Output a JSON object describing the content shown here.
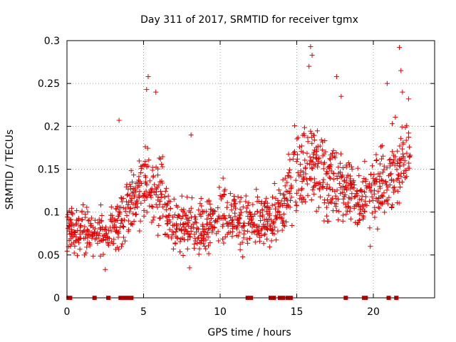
{
  "chart_data": {
    "type": "scatter",
    "title": "Day 311 of 2017, SRMTID for receiver tgmx",
    "xlabel": "GPS time / hours",
    "ylabel": "SRMTID / TECUs",
    "xlim": [
      0,
      24
    ],
    "ylim": [
      0,
      0.3
    ],
    "xticks": [
      0,
      5,
      10,
      15,
      20
    ],
    "yticks": [
      0,
      0.05,
      0.1,
      0.15,
      0.2,
      0.25,
      0.3
    ],
    "xtick_labels": [
      "0",
      "5",
      "10",
      "15",
      "20"
    ],
    "ytick_labels": [
      "0",
      "0.05",
      "0.1",
      "0.15",
      "0.2",
      "0.25",
      "0.3"
    ],
    "grid": true,
    "marker": "+",
    "color": "#e00000",
    "series": [
      {
        "name": "SRMTID",
        "trend": [
          {
            "x": 0.0,
            "y": 0.08,
            "spread": 0.025
          },
          {
            "x": 1.0,
            "y": 0.08,
            "spread": 0.025
          },
          {
            "x": 2.0,
            "y": 0.075,
            "spread": 0.025
          },
          {
            "x": 3.0,
            "y": 0.08,
            "spread": 0.025
          },
          {
            "x": 4.0,
            "y": 0.1,
            "spread": 0.035
          },
          {
            "x": 5.0,
            "y": 0.13,
            "spread": 0.045
          },
          {
            "x": 6.0,
            "y": 0.12,
            "spread": 0.045
          },
          {
            "x": 7.0,
            "y": 0.085,
            "spread": 0.028
          },
          {
            "x": 8.0,
            "y": 0.08,
            "spread": 0.028
          },
          {
            "x": 9.0,
            "y": 0.085,
            "spread": 0.03
          },
          {
            "x": 10.0,
            "y": 0.1,
            "spread": 0.03
          },
          {
            "x": 11.0,
            "y": 0.095,
            "spread": 0.03
          },
          {
            "x": 12.0,
            "y": 0.085,
            "spread": 0.028
          },
          {
            "x": 13.0,
            "y": 0.09,
            "spread": 0.028
          },
          {
            "x": 14.0,
            "y": 0.1,
            "spread": 0.03
          },
          {
            "x": 15.0,
            "y": 0.15,
            "spread": 0.045
          },
          {
            "x": 16.0,
            "y": 0.16,
            "spread": 0.05
          },
          {
            "x": 17.0,
            "y": 0.14,
            "spread": 0.04
          },
          {
            "x": 18.0,
            "y": 0.13,
            "spread": 0.04
          },
          {
            "x": 19.0,
            "y": 0.12,
            "spread": 0.035
          },
          {
            "x": 20.0,
            "y": 0.12,
            "spread": 0.035
          },
          {
            "x": 21.0,
            "y": 0.14,
            "spread": 0.04
          },
          {
            "x": 22.0,
            "y": 0.16,
            "spread": 0.045
          },
          {
            "x": 22.4,
            "y": 0.17,
            "spread": 0.04
          }
        ],
        "outliers": [
          {
            "x": 3.4,
            "y": 0.207
          },
          {
            "x": 5.3,
            "y": 0.258
          },
          {
            "x": 5.2,
            "y": 0.243
          },
          {
            "x": 5.8,
            "y": 0.24
          },
          {
            "x": 8.1,
            "y": 0.19
          },
          {
            "x": 15.9,
            "y": 0.293
          },
          {
            "x": 16.0,
            "y": 0.283
          },
          {
            "x": 15.8,
            "y": 0.27
          },
          {
            "x": 17.6,
            "y": 0.258
          },
          {
            "x": 17.9,
            "y": 0.235
          },
          {
            "x": 20.9,
            "y": 0.25
          },
          {
            "x": 21.7,
            "y": 0.292
          },
          {
            "x": 21.8,
            "y": 0.265
          },
          {
            "x": 21.9,
            "y": 0.24
          },
          {
            "x": 22.3,
            "y": 0.232
          },
          {
            "x": 19.8,
            "y": 0.06
          },
          {
            "x": 8.0,
            "y": 0.035
          },
          {
            "x": 2.5,
            "y": 0.033
          }
        ],
        "zero_x": [
          0.1,
          0.2,
          1.8,
          2.7,
          3.5,
          3.7,
          3.8,
          4.0,
          4.2,
          11.8,
          12.0,
          13.3,
          13.5,
          13.9,
          14.1,
          14.4,
          14.6,
          18.2,
          19.4,
          19.5,
          21.0,
          21.5
        ]
      }
    ]
  }
}
